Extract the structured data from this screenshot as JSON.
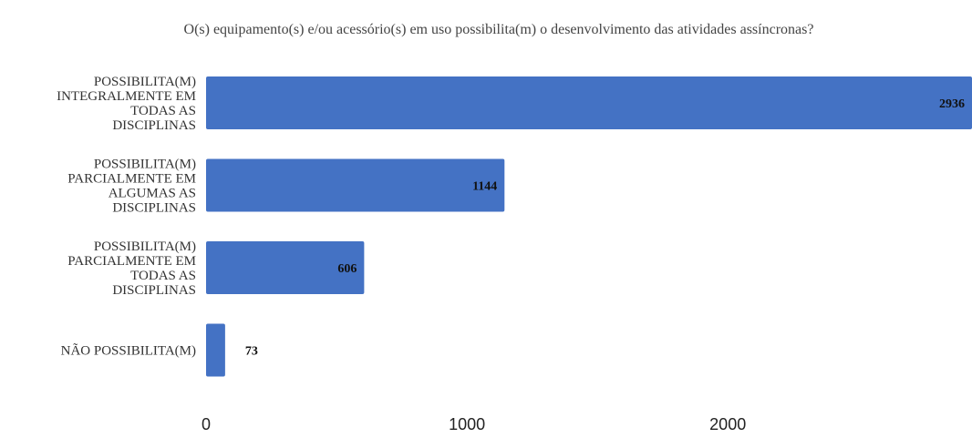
{
  "chart_data": {
    "type": "bar",
    "orientation": "horizontal",
    "title": "O(s) equipamento(s) e/ou acessório(s) em uso possibilita(m) o desenvolvimento das atividades assíncronas?",
    "categories": [
      [
        "POSSIBILITA(M)",
        "INTEGRALMENTE EM",
        "TODAS AS",
        "DISCIPLINAS"
      ],
      [
        "POSSIBILITA(M)",
        "PARCIALMENTE EM",
        "ALGUMAS AS",
        "DISCIPLINAS"
      ],
      [
        "POSSIBILITA(M)",
        "PARCIALMENTE EM",
        "TODAS AS",
        "DISCIPLINAS"
      ],
      [
        "NÃO POSSIBILITA(M)"
      ]
    ],
    "values": [
      2936,
      1144,
      606,
      73
    ],
    "data_labels": [
      "2936",
      "1144",
      "606",
      "73"
    ],
    "x_ticks": [
      "0",
      "1000",
      "2000"
    ],
    "xlim": [
      0,
      2936
    ],
    "bar_color": "#4472C4",
    "grid": false,
    "legend": "none"
  }
}
